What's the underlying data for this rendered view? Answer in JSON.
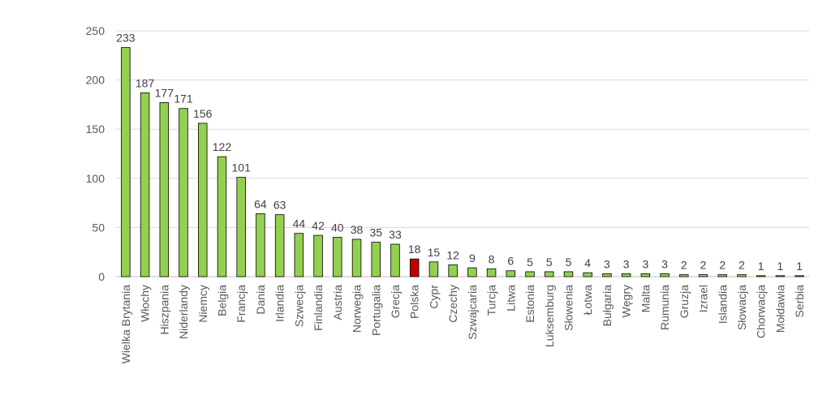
{
  "chart_data": {
    "type": "bar",
    "title": "",
    "xlabel": "",
    "ylabel": "",
    "ylim": [
      0,
      250
    ],
    "yticks": [
      0,
      50,
      100,
      150,
      200,
      250
    ],
    "grid": true,
    "legend": "none",
    "categories": [
      "Wielka Brytania",
      "Włochy",
      "Hiszpania",
      "Niderlandy",
      "Niemcy",
      "Belgia",
      "Francja",
      "Dania",
      "Irlandia",
      "Szwecja",
      "Finlandia",
      "Austria",
      "Norwegia",
      "Portugalia",
      "Grecja",
      "Polska",
      "Cypr",
      "Czechy",
      "Szwajcaria",
      "Turcja",
      "Litwa",
      "Estonia",
      "Luksemburg",
      "Słowenia",
      "Łotwa",
      "Bułgaria",
      "Węgry",
      "Malta",
      "Rumunia",
      "Gruzja",
      "Izrael",
      "Islandia",
      "Słowacja",
      "Chorwacja",
      "Mołdawia",
      "Serbia"
    ],
    "values": [
      233,
      187,
      177,
      171,
      156,
      122,
      101,
      64,
      63,
      44,
      42,
      40,
      38,
      35,
      33,
      18,
      15,
      12,
      9,
      8,
      6,
      5,
      5,
      5,
      4,
      3,
      3,
      3,
      3,
      2,
      2,
      2,
      2,
      1,
      1,
      1
    ],
    "colors": {
      "default": "#92d050",
      "highlight": "#c00000",
      "outline": "#000000"
    },
    "highlight_category": "Polska"
  }
}
